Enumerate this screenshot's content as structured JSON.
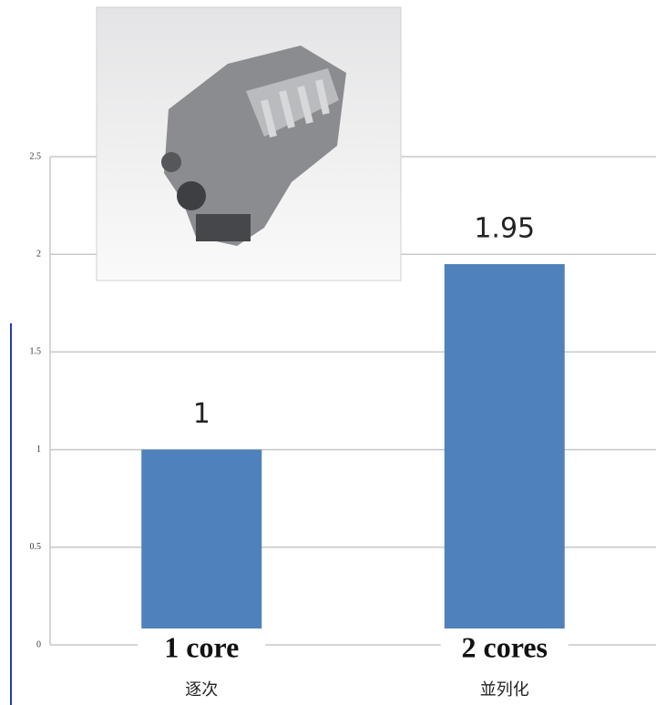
{
  "chart_data": {
    "type": "bar",
    "categories": [
      "1 core",
      "2 cores"
    ],
    "subcategories": [
      "逐次",
      "並列化"
    ],
    "values": [
      1,
      1.95
    ],
    "color": "#4f81bd",
    "ylim": [
      0,
      2.5
    ],
    "yticks": [
      0,
      0.5,
      1,
      1.5,
      2,
      2.5
    ],
    "grid": true
  }
}
